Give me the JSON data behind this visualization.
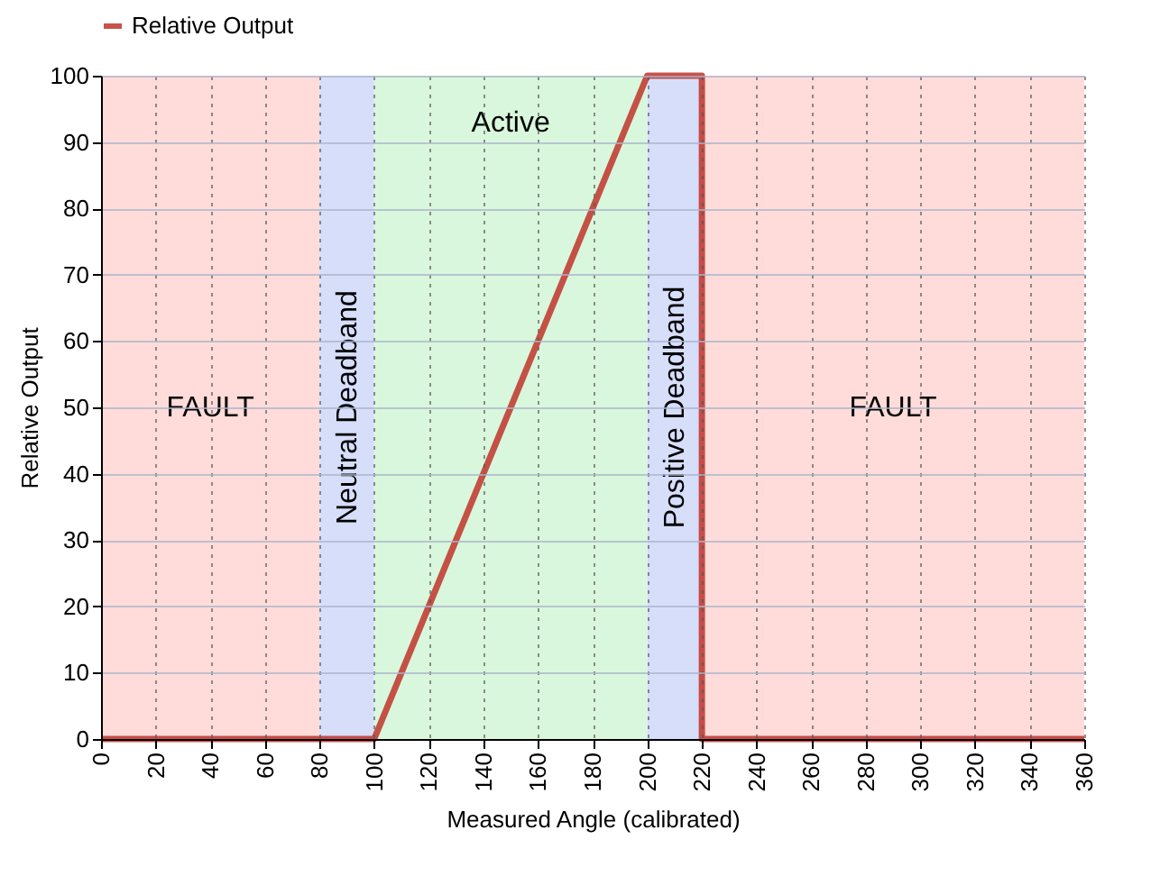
{
  "chart_data": {
    "type": "line",
    "xlabel": "Measured Angle (calibrated)",
    "ylabel": "Relative Output",
    "series": [
      {
        "name": "Relative Output",
        "color": "#c0342a",
        "x": [
          0,
          100,
          200,
          220,
          220,
          360
        ],
        "values": [
          0,
          0,
          100,
          100,
          0,
          0
        ]
      }
    ],
    "xlim": [
      0,
      360
    ],
    "xticks": [
      0,
      20,
      40,
      60,
      80,
      100,
      120,
      140,
      160,
      180,
      200,
      220,
      240,
      260,
      280,
      300,
      320,
      340,
      360
    ],
    "ylim": [
      0,
      100
    ],
    "yticks": [
      0,
      10,
      20,
      30,
      40,
      50,
      60,
      70,
      80,
      90,
      100
    ],
    "bands": [
      {
        "axis": "x",
        "from": 0,
        "to": 80,
        "label": "FAULT",
        "color": "#ffdcd9"
      },
      {
        "axis": "x",
        "from": 80,
        "to": 100,
        "label": "Neutral Deadband",
        "color": "#d6defa"
      },
      {
        "axis": "x",
        "from": 100,
        "to": 200,
        "label": "Active",
        "color": "#d9f7dc"
      },
      {
        "axis": "x",
        "from": 200,
        "to": 220,
        "label": "Positive Deadband",
        "color": "#d6defa"
      },
      {
        "axis": "x",
        "from": 220,
        "to": 360,
        "label": "FAULT",
        "color": "#ffdcd9"
      }
    ],
    "grid": true,
    "legend": "top",
    "marker": "none",
    "line_style": "solid"
  }
}
